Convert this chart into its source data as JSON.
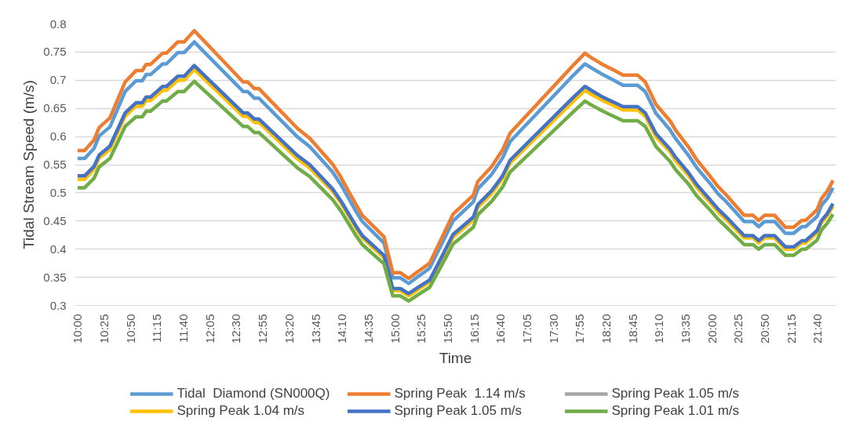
{
  "chart_data": {
    "type": "line",
    "xlabel": "Time",
    "ylabel": "Tidal Stream Speed (m/s)",
    "x": [
      10.0,
      10.11,
      10.26,
      10.34,
      10.51,
      10.75,
      10.92,
      11.02,
      11.08,
      11.15,
      11.34,
      11.4,
      11.58,
      11.68,
      11.84,
      12.61,
      12.68,
      12.79,
      12.86,
      13.47,
      13.66,
      14.02,
      14.15,
      14.39,
      14.49,
      14.83,
      14.97,
      15.09,
      15.22,
      15.34,
      15.55,
      15.73,
      15.92,
      16.24,
      16.31,
      16.53,
      16.7,
      16.82,
      17.81,
      18.0,
      18.1,
      18.28,
      18.47,
      18.6,
      18.83,
      18.95,
      19.12,
      19.34,
      19.43,
      19.63,
      19.76,
      19.97,
      20.1,
      20.23,
      20.51,
      20.65,
      20.74,
      20.83,
      20.99,
      21.16,
      21.29,
      21.42,
      21.48,
      21.66,
      21.73,
      21.82,
      21.91
    ],
    "series": [
      {
        "name": "Tidal  Diamond (SN000Q)",
        "color": "#5b9bd5",
        "values": [
          0.561,
          0.561,
          0.579,
          0.601,
          0.617,
          0.68,
          0.699,
          0.699,
          0.71,
          0.71,
          0.729,
          0.729,
          0.749,
          0.749,
          0.768,
          0.68,
          0.68,
          0.668,
          0.668,
          0.599,
          0.582,
          0.537,
          0.515,
          0.467,
          0.449,
          0.411,
          0.349,
          0.349,
          0.339,
          0.349,
          0.366,
          0.407,
          0.45,
          0.484,
          0.507,
          0.533,
          0.562,
          0.591,
          0.708,
          0.729,
          0.722,
          0.71,
          0.699,
          0.691,
          0.691,
          0.68,
          0.641,
          0.612,
          0.596,
          0.567,
          0.545,
          0.517,
          0.498,
          0.484,
          0.449,
          0.449,
          0.44,
          0.449,
          0.449,
          0.428,
          0.428,
          0.44,
          0.44,
          0.458,
          0.478,
          0.49,
          0.509
        ]
      },
      {
        "name": "Spring Peak  1.14 m/s",
        "color": "#ed7d31",
        "values": [
          0.575,
          0.575,
          0.594,
          0.616,
          0.633,
          0.697,
          0.717,
          0.717,
          0.728,
          0.728,
          0.748,
          0.748,
          0.768,
          0.768,
          0.788,
          0.697,
          0.697,
          0.685,
          0.685,
          0.614,
          0.597,
          0.551,
          0.528,
          0.479,
          0.46,
          0.422,
          0.358,
          0.358,
          0.348,
          0.358,
          0.375,
          0.417,
          0.462,
          0.496,
          0.52,
          0.547,
          0.576,
          0.606,
          0.726,
          0.748,
          0.74,
          0.728,
          0.717,
          0.709,
          0.709,
          0.697,
          0.657,
          0.628,
          0.611,
          0.582,
          0.559,
          0.53,
          0.511,
          0.496,
          0.46,
          0.46,
          0.451,
          0.46,
          0.46,
          0.439,
          0.439,
          0.451,
          0.451,
          0.47,
          0.49,
          0.503,
          0.522
        ]
      },
      {
        "name": "Spring Peak 1.05 m/s",
        "color": "#a5a5a5",
        "values": [
          null,
          null,
          null,
          null,
          null,
          null,
          null,
          null,
          null,
          null,
          null,
          null,
          null,
          null,
          null,
          null,
          null,
          null,
          null,
          null,
          null,
          null,
          null,
          null,
          null,
          null,
          null,
          null,
          null,
          null,
          null,
          null,
          null,
          null,
          null,
          null,
          null,
          null,
          null,
          null,
          null,
          null,
          null,
          null,
          null,
          null,
          null,
          null,
          null,
          null,
          null,
          null,
          null,
          null,
          null,
          null,
          null,
          null,
          null,
          null,
          null,
          null,
          null,
          null,
          null,
          null,
          null
        ]
      },
      {
        "name": "Spring Peak 1.04 m/s",
        "color": "#ffc000",
        "values": [
          0.524,
          0.524,
          0.542,
          0.562,
          0.577,
          0.636,
          0.654,
          0.654,
          0.664,
          0.664,
          0.682,
          0.682,
          0.7,
          0.7,
          0.719,
          0.636,
          0.636,
          0.625,
          0.625,
          0.56,
          0.544,
          0.503,
          0.482,
          0.437,
          0.42,
          0.385,
          0.326,
          0.326,
          0.317,
          0.326,
          0.342,
          0.38,
          0.421,
          0.452,
          0.474,
          0.499,
          0.525,
          0.553,
          0.662,
          0.682,
          0.675,
          0.664,
          0.654,
          0.647,
          0.647,
          0.636,
          0.599,
          0.573,
          0.557,
          0.531,
          0.51,
          0.483,
          0.466,
          0.452,
          0.42,
          0.42,
          0.411,
          0.42,
          0.42,
          0.4,
          0.4,
          0.411,
          0.411,
          0.429,
          0.447,
          0.459,
          0.476
        ]
      },
      {
        "name": "Spring Peak 1.05 m/s",
        "color": "#4472c4",
        "values": [
          0.53,
          0.53,
          0.547,
          0.567,
          0.583,
          0.642,
          0.66,
          0.66,
          0.67,
          0.67,
          0.689,
          0.689,
          0.707,
          0.707,
          0.726,
          0.642,
          0.642,
          0.631,
          0.631,
          0.566,
          0.55,
          0.507,
          0.486,
          0.441,
          0.424,
          0.389,
          0.33,
          0.33,
          0.321,
          0.33,
          0.345,
          0.384,
          0.426,
          0.457,
          0.479,
          0.504,
          0.53,
          0.558,
          0.669,
          0.689,
          0.682,
          0.67,
          0.66,
          0.653,
          0.653,
          0.642,
          0.605,
          0.578,
          0.563,
          0.536,
          0.515,
          0.488,
          0.471,
          0.457,
          0.424,
          0.424,
          0.415,
          0.424,
          0.424,
          0.404,
          0.404,
          0.415,
          0.415,
          0.433,
          0.451,
          0.463,
          0.481
        ]
      },
      {
        "name": "Spring Peak 1.01 m/s",
        "color": "#70ad47",
        "values": [
          0.509,
          0.509,
          0.526,
          0.546,
          0.561,
          0.618,
          0.635,
          0.635,
          0.645,
          0.645,
          0.663,
          0.663,
          0.68,
          0.68,
          0.698,
          0.618,
          0.618,
          0.607,
          0.607,
          0.544,
          0.529,
          0.488,
          0.468,
          0.424,
          0.408,
          0.374,
          0.317,
          0.317,
          0.308,
          0.317,
          0.332,
          0.369,
          0.409,
          0.439,
          0.461,
          0.485,
          0.51,
          0.537,
          0.643,
          0.663,
          0.656,
          0.645,
          0.635,
          0.628,
          0.628,
          0.618,
          0.582,
          0.556,
          0.541,
          0.516,
          0.495,
          0.47,
          0.453,
          0.439,
          0.408,
          0.408,
          0.4,
          0.408,
          0.408,
          0.389,
          0.389,
          0.4,
          0.4,
          0.416,
          0.434,
          0.446,
          0.462
        ]
      }
    ],
    "xlim": [
      9.958,
      21.958
    ],
    "xticks": [
      {
        "value": 10.0,
        "label": "10:00"
      },
      {
        "value": 10.417,
        "label": "10:25"
      },
      {
        "value": 10.833,
        "label": "10:50"
      },
      {
        "value": 11.25,
        "label": "11:15"
      },
      {
        "value": 11.667,
        "label": "11:40"
      },
      {
        "value": 12.083,
        "label": "12:05"
      },
      {
        "value": 12.5,
        "label": "12:30"
      },
      {
        "value": 12.917,
        "label": "12:55"
      },
      {
        "value": 13.333,
        "label": "13:20"
      },
      {
        "value": 13.75,
        "label": "13:45"
      },
      {
        "value": 14.167,
        "label": "14:10"
      },
      {
        "value": 14.583,
        "label": "14:35"
      },
      {
        "value": 15.0,
        "label": "15:00"
      },
      {
        "value": 15.417,
        "label": "15:25"
      },
      {
        "value": 15.833,
        "label": "15:50"
      },
      {
        "value": 16.25,
        "label": "16:15"
      },
      {
        "value": 16.667,
        "label": "16:40"
      },
      {
        "value": 17.083,
        "label": "17:05"
      },
      {
        "value": 17.5,
        "label": "17:30"
      },
      {
        "value": 17.917,
        "label": "17:55"
      },
      {
        "value": 18.333,
        "label": "18:20"
      },
      {
        "value": 18.75,
        "label": "18:45"
      },
      {
        "value": 19.167,
        "label": "19:10"
      },
      {
        "value": 19.583,
        "label": "19:35"
      },
      {
        "value": 20.0,
        "label": "20:00"
      },
      {
        "value": 20.417,
        "label": "20:25"
      },
      {
        "value": 20.833,
        "label": "20:50"
      },
      {
        "value": 21.25,
        "label": "21:15"
      },
      {
        "value": 21.667,
        "label": "21:40"
      }
    ],
    "ylim": [
      0.3,
      0.8
    ],
    "yticks": [
      0.3,
      0.35,
      0.4,
      0.45,
      0.5,
      0.55,
      0.6,
      0.65,
      0.7,
      0.75,
      0.8
    ],
    "grid": "y",
    "legend": "bottom",
    "marker": "none",
    "line_style": "solid"
  }
}
